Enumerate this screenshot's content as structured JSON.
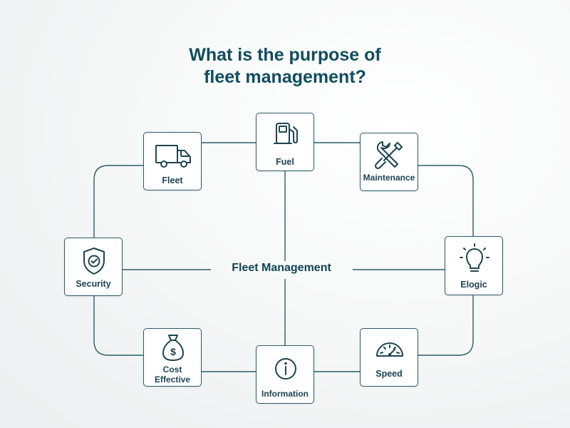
{
  "title": {
    "line1": "What is the purpose of",
    "line2": "fleet management?"
  },
  "center": "Fleet Management",
  "nodes": {
    "fuel": {
      "label": "Fuel",
      "icon": "fuel-pump-icon"
    },
    "fleet": {
      "label": "Fleet",
      "icon": "truck-icon"
    },
    "maintenance": {
      "label": "Maintenance",
      "icon": "tools-icon"
    },
    "security": {
      "label": "Security",
      "icon": "shield-check-icon"
    },
    "elogic": {
      "label": "Elogic",
      "icon": "lightbulb-icon"
    },
    "cost": {
      "line1": "Cost",
      "line2": "Effective",
      "icon": "money-bag-icon"
    },
    "information": {
      "label": "Information",
      "icon": "info-icon"
    },
    "speed": {
      "label": "Speed",
      "icon": "speedometer-icon"
    }
  },
  "colors": {
    "title": "#104d5e",
    "stroke": "#2b5c6a",
    "text": "#1d4451"
  }
}
